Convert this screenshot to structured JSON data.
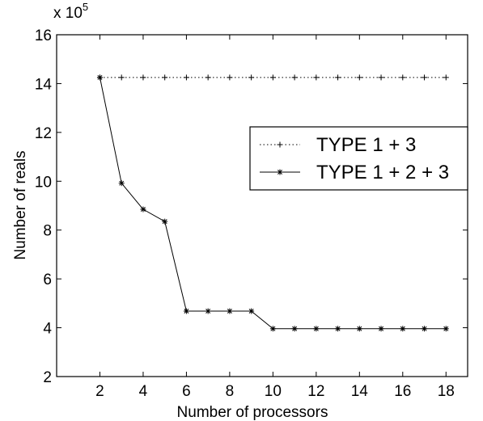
{
  "chart_data": {
    "type": "line",
    "xlabel": "Number of processors",
    "ylabel": "Number of reals",
    "y_multiplier": "x 10",
    "y_multiplier_exponent": "5",
    "xlim": [
      0,
      19
    ],
    "ylim": [
      2,
      16
    ],
    "xticks": [
      2,
      4,
      6,
      8,
      10,
      12,
      14,
      16,
      18
    ],
    "yticks": [
      2,
      4,
      6,
      8,
      10,
      12,
      14,
      16
    ],
    "grid": false,
    "legend_position": "center-right",
    "series": [
      {
        "name": "TYPE 1 + 3",
        "style": "dotted",
        "marker": "+",
        "color": "#000000",
        "x": [
          2,
          3,
          4,
          5,
          6,
          7,
          8,
          9,
          10,
          11,
          12,
          13,
          14,
          15,
          16,
          17,
          18
        ],
        "y": [
          14.25,
          14.25,
          14.25,
          14.25,
          14.25,
          14.25,
          14.25,
          14.25,
          14.25,
          14.25,
          14.25,
          14.25,
          14.25,
          14.25,
          14.25,
          14.25,
          14.25
        ]
      },
      {
        "name": "TYPE 1 + 2 + 3",
        "style": "solid",
        "marker": "*",
        "color": "#000000",
        "x": [
          2,
          3,
          4,
          5,
          6,
          7,
          8,
          9,
          10,
          11,
          12,
          13,
          14,
          15,
          16,
          17,
          18
        ],
        "y": [
          14.25,
          9.92,
          8.85,
          8.35,
          4.68,
          4.68,
          4.68,
          4.68,
          3.96,
          3.96,
          3.96,
          3.96,
          3.96,
          3.96,
          3.96,
          3.96,
          3.96
        ]
      }
    ]
  }
}
